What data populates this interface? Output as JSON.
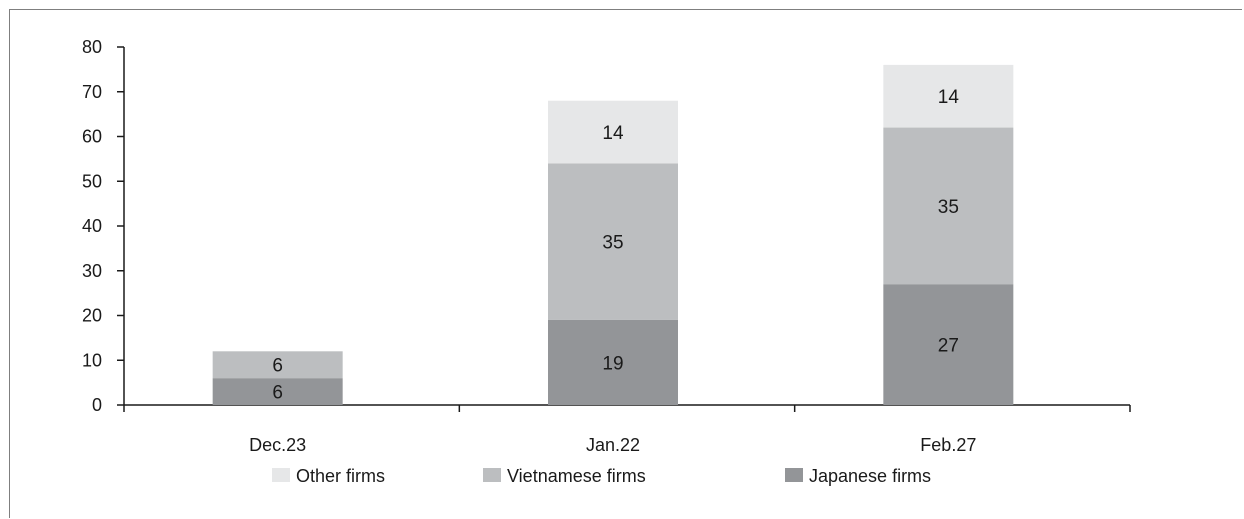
{
  "chart_data": {
    "type": "bar",
    "stacked": true,
    "categories": [
      "Dec.23",
      "Jan.22",
      "Feb.27"
    ],
    "series": [
      {
        "name": "Japanese firms",
        "values": [
          6,
          19,
          27
        ],
        "labels": [
          "6",
          "19",
          "27"
        ],
        "color": "#939598"
      },
      {
        "name": "Vietnamese firms",
        "values": [
          6,
          35,
          35
        ],
        "labels": [
          "6",
          "35",
          "35"
        ],
        "color": "#bcbec0"
      },
      {
        "name": "Other firms",
        "values": [
          0,
          14,
          14
        ],
        "labels": [
          "",
          "14",
          "14"
        ],
        "color": "#e6e7e8"
      }
    ],
    "legend_order": [
      "Other firms",
      "Vietnamese firms",
      "Japanese firms"
    ],
    "ylim": [
      0,
      80
    ],
    "yticks": [
      0,
      10,
      20,
      30,
      40,
      50,
      60,
      70,
      80
    ],
    "ytick_labels": [
      "0",
      "10",
      "20",
      "30",
      "40",
      "50",
      "60",
      "70",
      "80"
    ],
    "title": "",
    "xlabel": "",
    "ylabel": "",
    "grid": false,
    "legend_position": "bottom"
  }
}
